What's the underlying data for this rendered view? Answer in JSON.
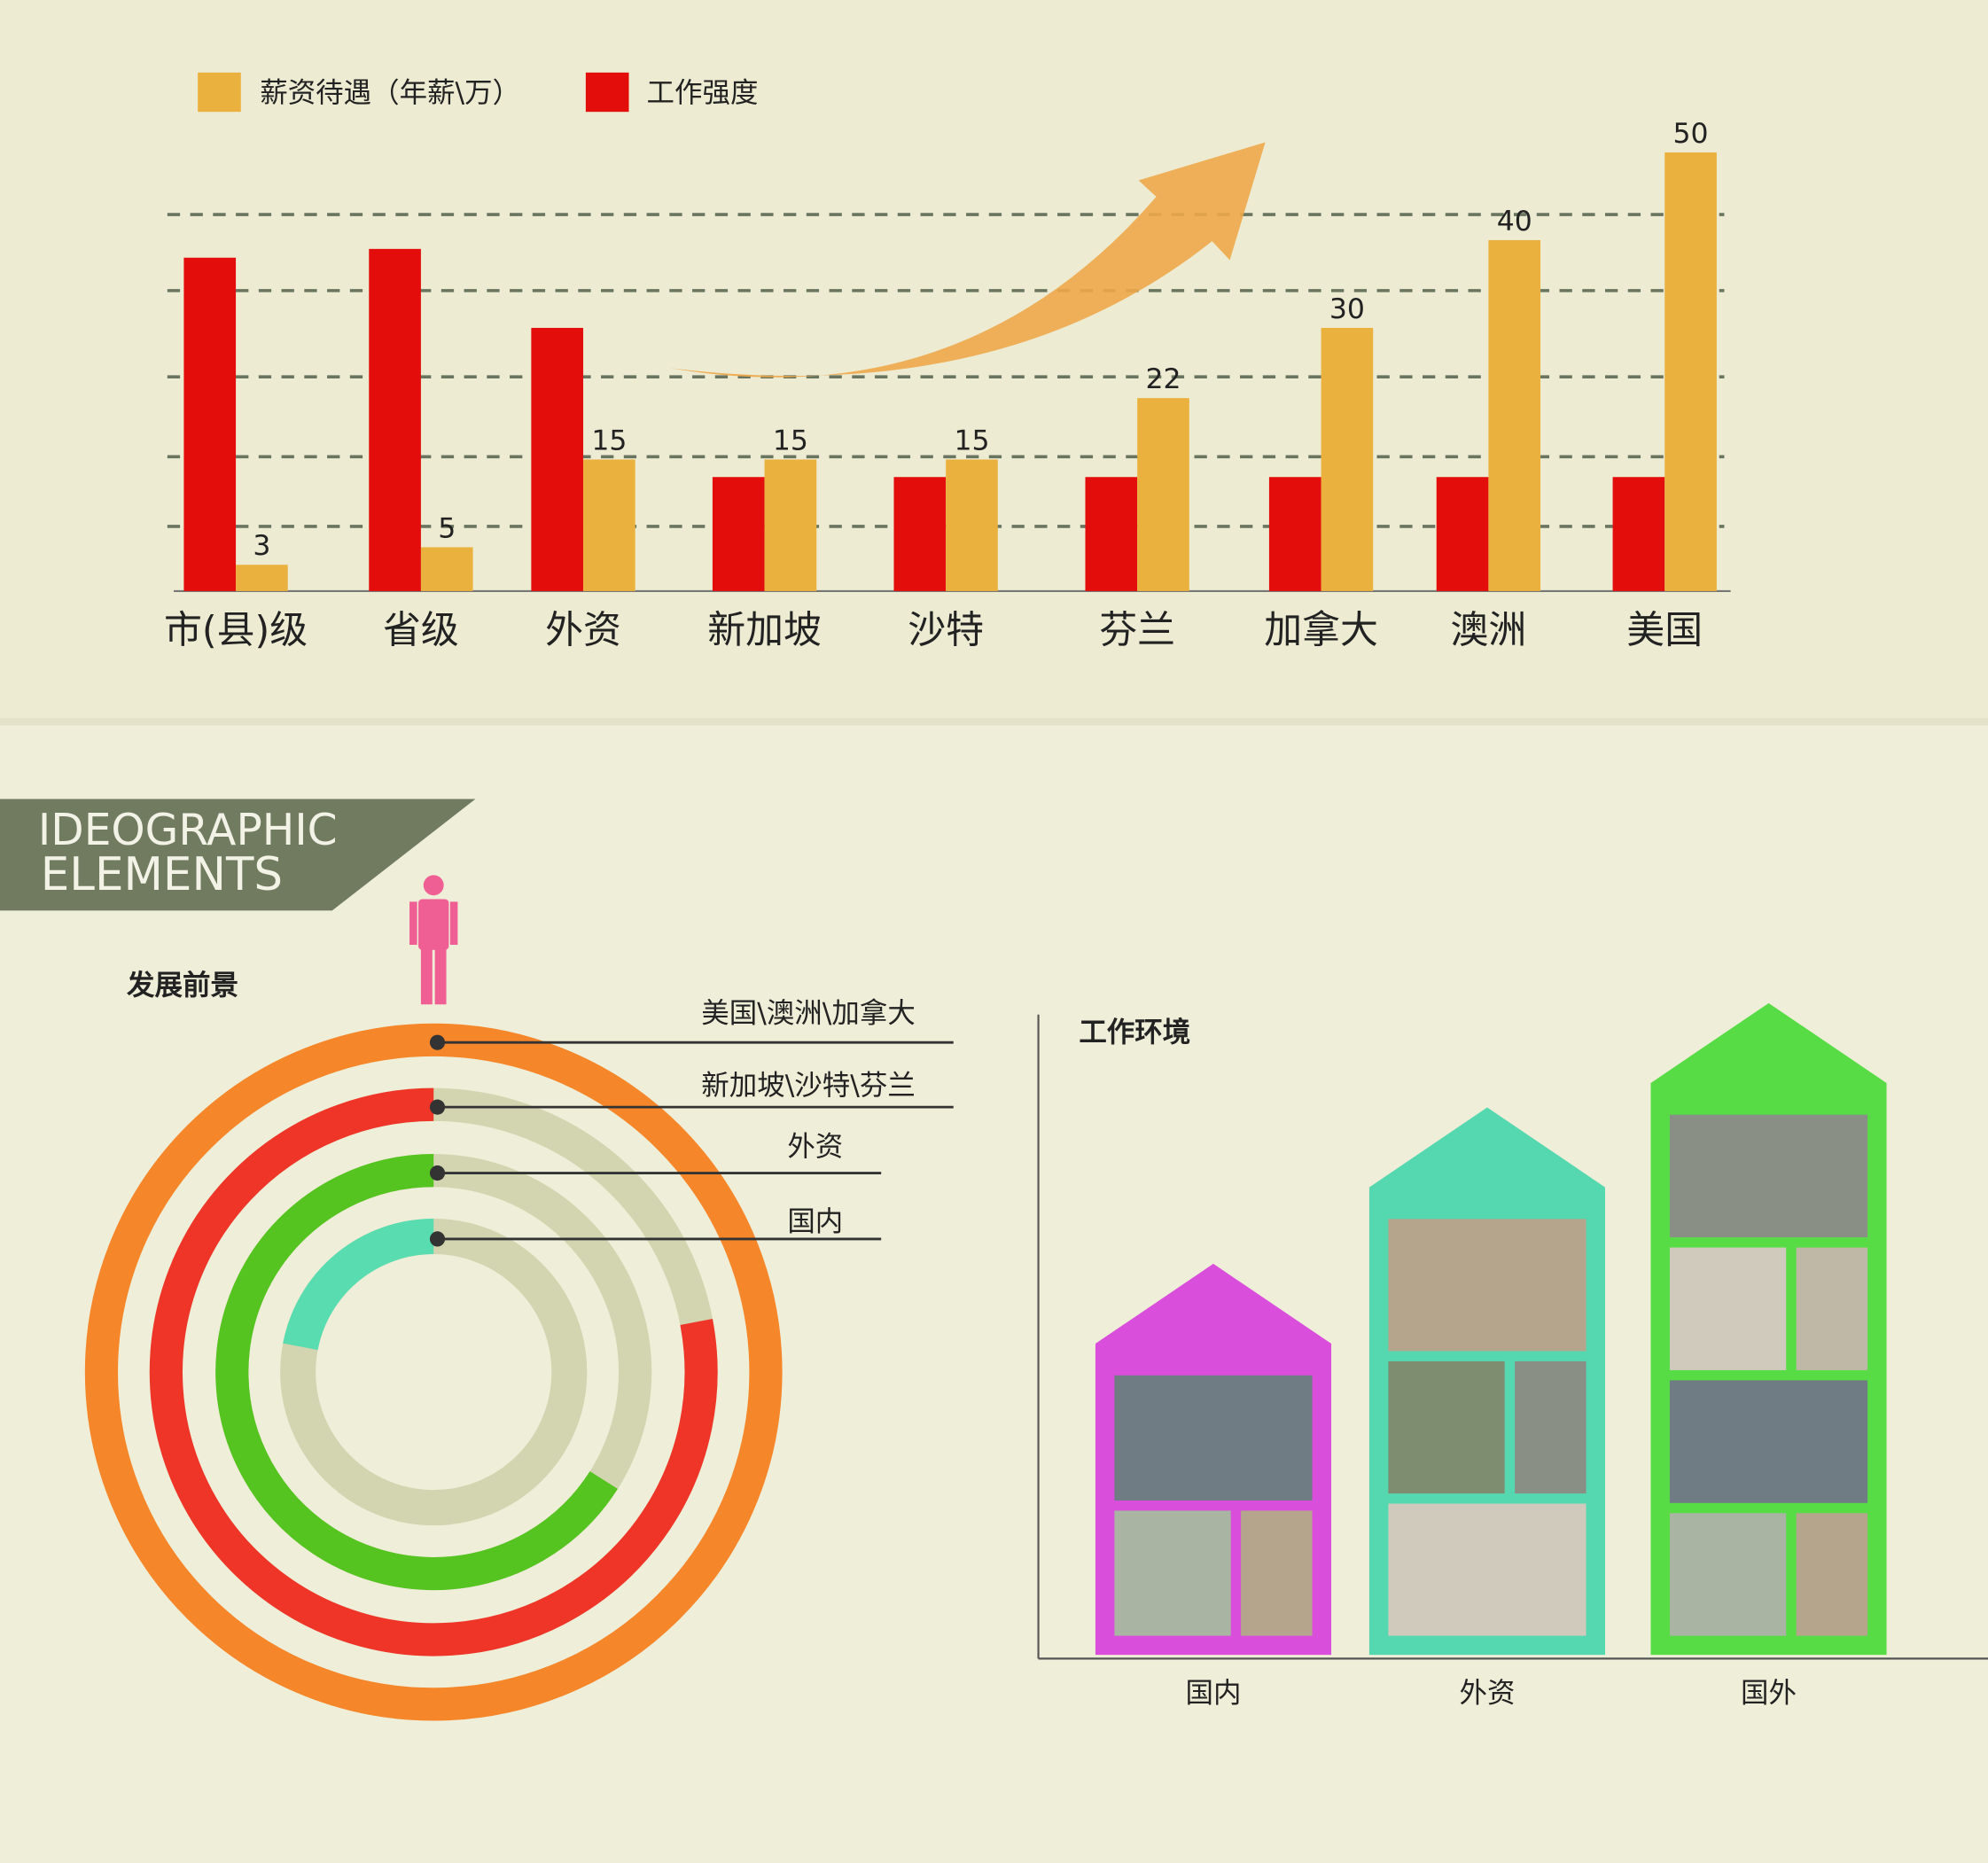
{
  "chart_data": [
    {
      "type": "bar",
      "categories": [
        "市(县)级",
        "省级",
        "外资",
        "新加坡",
        "沙特",
        "芬兰",
        "加拿大",
        "澳洲",
        "美国"
      ],
      "series": [
        {
          "name": "工作强度",
          "color": "#e30d0b",
          "values": [
            38,
            39,
            30,
            13,
            13,
            13,
            13,
            13,
            13
          ]
        },
        {
          "name": "薪资待遇（年薪\\万）",
          "color": "#ebb13f",
          "values": [
            3,
            5,
            15,
            15,
            15,
            22,
            30,
            40,
            50
          ]
        }
      ]
    },
    {
      "type": "ring",
      "title": "发展前景",
      "categories": [
        "美国\\澳洲\\加拿大",
        "新加坡\\沙特\\芬兰",
        "外资",
        "国内"
      ],
      "values": [
        100,
        78,
        66,
        22
      ],
      "colors": [
        "#f5862a",
        "#ef3528",
        "#55c320",
        "#58dcb0"
      ]
    },
    {
      "type": "house",
      "title": "工作环境",
      "categories": [
        "国内",
        "外资",
        "国外"
      ],
      "values": [
        60,
        84,
        100
      ],
      "colors": [
        "#d94fdb",
        "#55d8b0",
        "#58dc46"
      ]
    }
  ],
  "banner": {
    "lines": [
      "IDEOGRAPHIC",
      "ELEMENTS"
    ]
  }
}
